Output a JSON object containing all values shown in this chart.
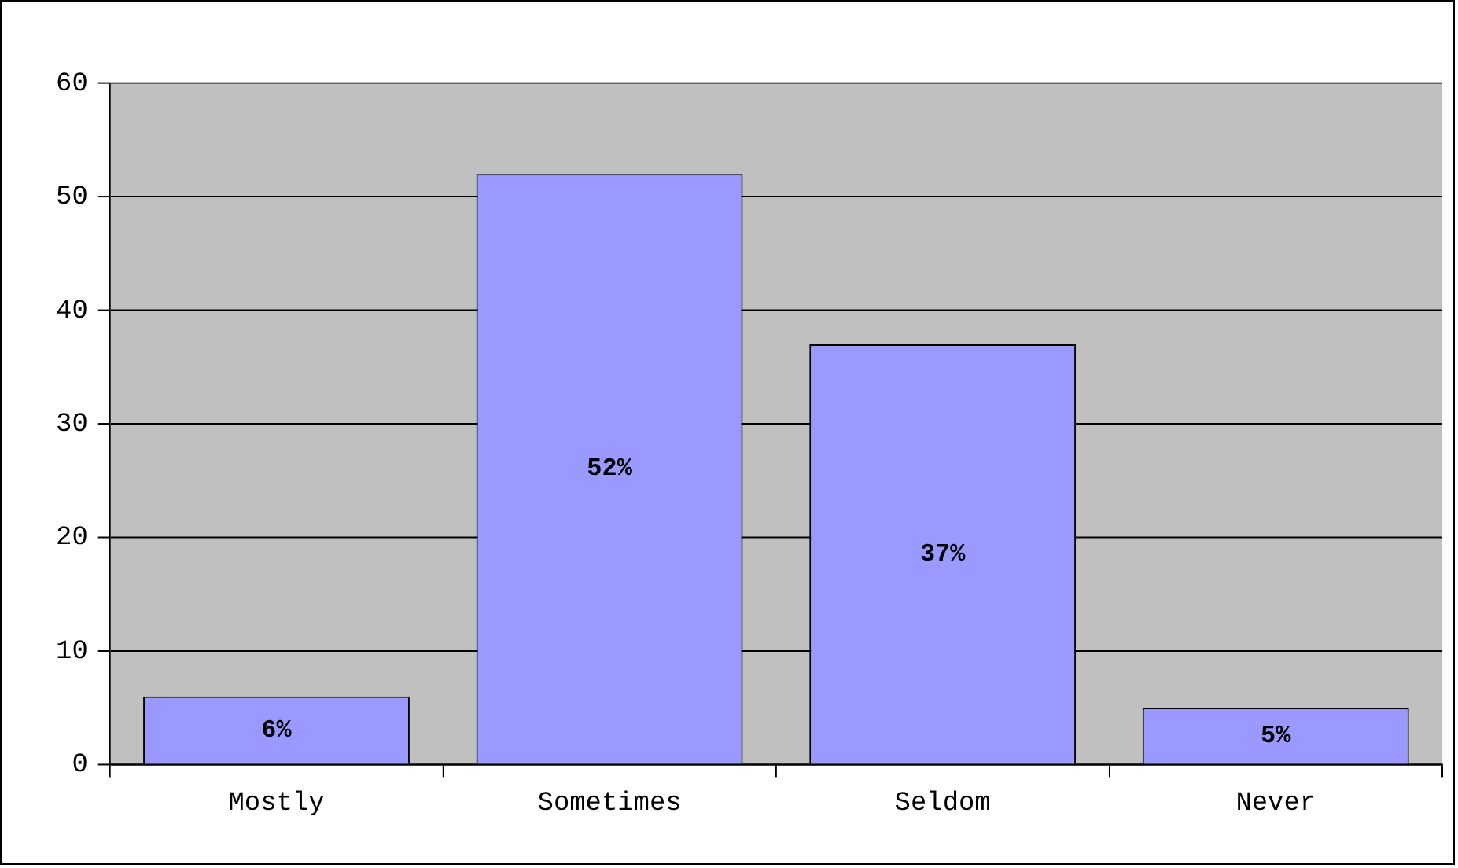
{
  "chart_data": {
    "type": "bar",
    "categories": [
      "Mostly",
      "Sometimes",
      "Seldom",
      "Never"
    ],
    "values": [
      6,
      52,
      37,
      5
    ],
    "value_labels": [
      "6%",
      "52%",
      "37%",
      "5%"
    ],
    "color": "#9999ff",
    "ylim": [
      0,
      60
    ],
    "yticks": [
      0,
      10,
      20,
      30,
      40,
      50,
      60
    ],
    "grid": "y",
    "legend": false
  }
}
